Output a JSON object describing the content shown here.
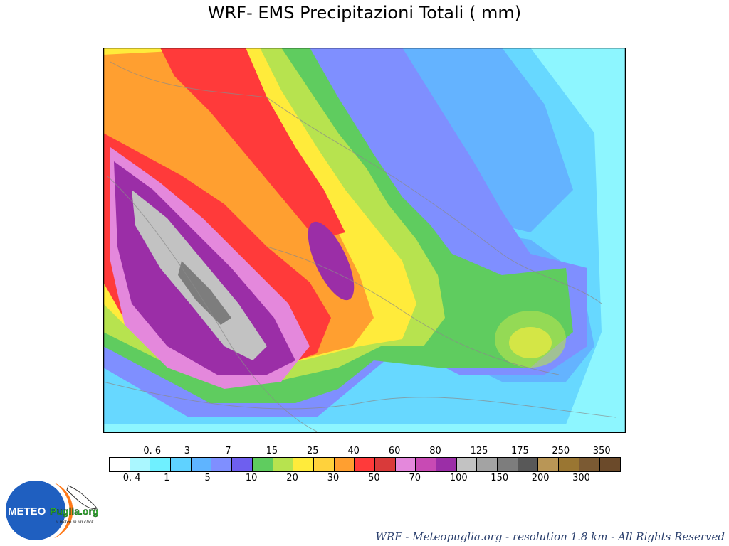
{
  "title": "WRF- EMS Precipitazioni Totali ( mm)",
  "legend": {
    "top_labels": [
      "0. 6",
      "3",
      "7",
      "15",
      "25",
      "40",
      "60",
      "80",
      "125",
      "175",
      "250",
      "350"
    ],
    "bottom_labels": [
      "0. 4",
      "1",
      "5",
      "10",
      "20",
      "30",
      "50",
      "70",
      "100",
      "150",
      "200",
      "300"
    ],
    "colors": [
      "#ffffff",
      "#aaf7ff",
      "#6ff0ff",
      "#5fd2ff",
      "#5fb4ff",
      "#7f8fff",
      "#6e5fef",
      "#5fcc5f",
      "#b7e34f",
      "#ffeb3b",
      "#ffd23c",
      "#ff9f30",
      "#ff3a3a",
      "#d93a3a",
      "#e488dc",
      "#c84ab4",
      "#9b2ea7",
      "#c2c2c2",
      "#a3a3a3",
      "#7d7d7d",
      "#585858",
      "#b99656",
      "#9a7632",
      "#7b5a33",
      "#6b4a2a"
    ]
  },
  "logo": {
    "text_meteo": "METEO",
    "text_puglia": "Puglia.org",
    "tagline": "il meteo in un click"
  },
  "footer": "WRF - Meteopuglia.org - resolution 1.8 km - All Rights Reserved"
}
